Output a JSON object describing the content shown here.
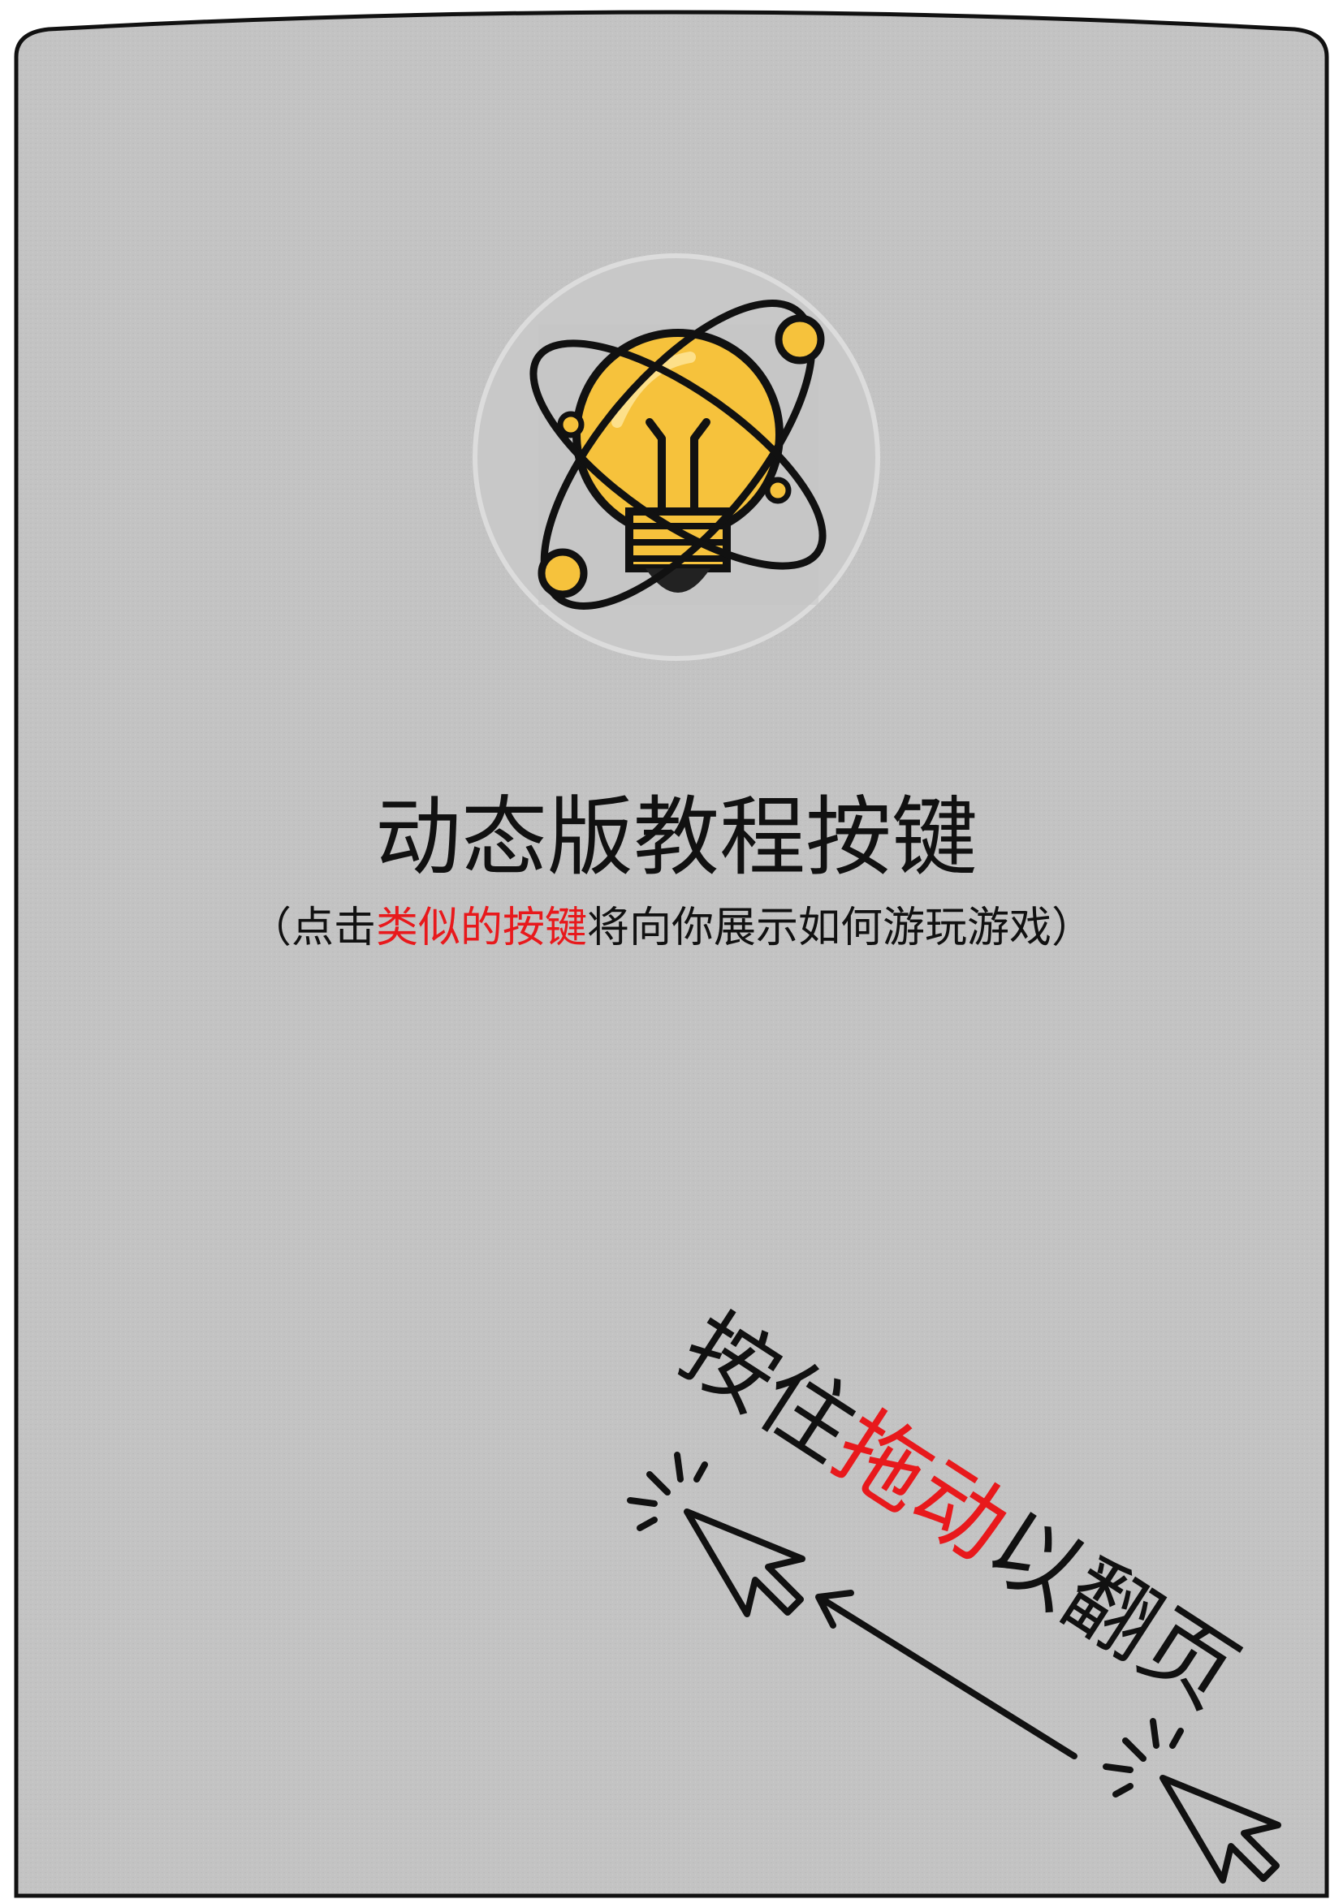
{
  "title": "动态版教程按键",
  "subtitle": {
    "before": "（点击",
    "highlight": "类似的按键",
    "after": "将向你展示如何游玩游戏）"
  },
  "drag_hint": {
    "before": "按住",
    "highlight": "拖动",
    "after": "以翻页"
  }
}
